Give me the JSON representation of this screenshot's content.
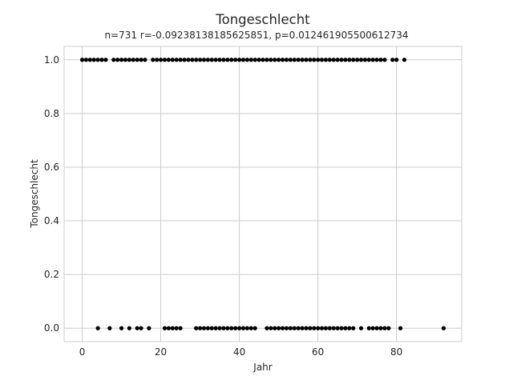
{
  "chart_data": {
    "type": "scatter",
    "title": "Tongeschlecht",
    "subtitle": "n=731 r=-0.09238138185625851, p=0.012461905500612734",
    "xlabel": "Jahr",
    "ylabel": "Tongeschlecht",
    "xlim": [
      -4.6,
      96.6
    ],
    "ylim": [
      -0.05,
      1.05
    ],
    "xticks": [
      0,
      20,
      40,
      60,
      80
    ],
    "xtick_labels": [
      "0",
      "20",
      "40",
      "60",
      "80"
    ],
    "yticks": [
      0.0,
      0.2,
      0.4,
      0.6,
      0.8,
      1.0
    ],
    "ytick_labels": [
      "0.0",
      "0.2",
      "0.4",
      "0.6",
      "0.8",
      "1.0"
    ],
    "grid": true,
    "marker_color": "#000000",
    "series": [
      {
        "values_note_free": true,
        "points": [
          [
            0,
            1
          ],
          [
            1,
            1
          ],
          [
            2,
            1
          ],
          [
            3,
            1
          ],
          [
            4,
            1
          ],
          [
            5,
            1
          ],
          [
            6,
            1
          ],
          [
            8,
            1
          ],
          [
            9,
            1
          ],
          [
            10,
            1
          ],
          [
            11,
            1
          ],
          [
            12,
            1
          ],
          [
            13,
            1
          ],
          [
            14,
            1
          ],
          [
            15,
            1
          ],
          [
            16,
            1
          ],
          [
            18,
            1
          ],
          [
            19,
            1
          ],
          [
            20,
            1
          ],
          [
            21,
            1
          ],
          [
            22,
            1
          ],
          [
            23,
            1
          ],
          [
            24,
            1
          ],
          [
            25,
            1
          ],
          [
            26,
            1
          ],
          [
            27,
            1
          ],
          [
            28,
            1
          ],
          [
            29,
            1
          ],
          [
            30,
            1
          ],
          [
            31,
            1
          ],
          [
            32,
            1
          ],
          [
            33,
            1
          ],
          [
            34,
            1
          ],
          [
            35,
            1
          ],
          [
            36,
            1
          ],
          [
            37,
            1
          ],
          [
            38,
            1
          ],
          [
            39,
            1
          ],
          [
            40,
            1
          ],
          [
            41,
            1
          ],
          [
            42,
            1
          ],
          [
            43,
            1
          ],
          [
            44,
            1
          ],
          [
            45,
            1
          ],
          [
            46,
            1
          ],
          [
            47,
            1
          ],
          [
            48,
            1
          ],
          [
            49,
            1
          ],
          [
            50,
            1
          ],
          [
            51,
            1
          ],
          [
            52,
            1
          ],
          [
            53,
            1
          ],
          [
            54,
            1
          ],
          [
            55,
            1
          ],
          [
            56,
            1
          ],
          [
            57,
            1
          ],
          [
            58,
            1
          ],
          [
            59,
            1
          ],
          [
            60,
            1
          ],
          [
            61,
            1
          ],
          [
            62,
            1
          ],
          [
            63,
            1
          ],
          [
            64,
            1
          ],
          [
            65,
            1
          ],
          [
            66,
            1
          ],
          [
            67,
            1
          ],
          [
            68,
            1
          ],
          [
            69,
            1
          ],
          [
            70,
            1
          ],
          [
            71,
            1
          ],
          [
            72,
            1
          ],
          [
            73,
            1
          ],
          [
            74,
            1
          ],
          [
            75,
            1
          ],
          [
            76,
            1
          ],
          [
            77,
            1
          ],
          [
            79,
            1
          ],
          [
            80,
            1
          ],
          [
            82,
            1
          ],
          [
            4,
            0
          ],
          [
            7,
            0
          ],
          [
            10,
            0
          ],
          [
            12,
            0
          ],
          [
            14,
            0
          ],
          [
            15,
            0
          ],
          [
            17,
            0
          ],
          [
            21,
            0
          ],
          [
            22,
            0
          ],
          [
            23,
            0
          ],
          [
            24,
            0
          ],
          [
            25,
            0
          ],
          [
            29,
            0
          ],
          [
            30,
            0
          ],
          [
            31,
            0
          ],
          [
            32,
            0
          ],
          [
            33,
            0
          ],
          [
            34,
            0
          ],
          [
            35,
            0
          ],
          [
            36,
            0
          ],
          [
            37,
            0
          ],
          [
            38,
            0
          ],
          [
            39,
            0
          ],
          [
            40,
            0
          ],
          [
            41,
            0
          ],
          [
            42,
            0
          ],
          [
            43,
            0
          ],
          [
            44,
            0
          ],
          [
            47,
            0
          ],
          [
            48,
            0
          ],
          [
            49,
            0
          ],
          [
            50,
            0
          ],
          [
            51,
            0
          ],
          [
            52,
            0
          ],
          [
            53,
            0
          ],
          [
            54,
            0
          ],
          [
            55,
            0
          ],
          [
            56,
            0
          ],
          [
            57,
            0
          ],
          [
            58,
            0
          ],
          [
            59,
            0
          ],
          [
            60,
            0
          ],
          [
            61,
            0
          ],
          [
            62,
            0
          ],
          [
            63,
            0
          ],
          [
            64,
            0
          ],
          [
            65,
            0
          ],
          [
            66,
            0
          ],
          [
            67,
            0
          ],
          [
            68,
            0
          ],
          [
            69,
            0
          ],
          [
            71,
            0
          ],
          [
            73,
            0
          ],
          [
            74,
            0
          ],
          [
            75,
            0
          ],
          [
            76,
            0
          ],
          [
            77,
            0
          ],
          [
            78,
            0
          ],
          [
            81,
            0
          ],
          [
            92,
            0
          ]
        ]
      }
    ]
  }
}
